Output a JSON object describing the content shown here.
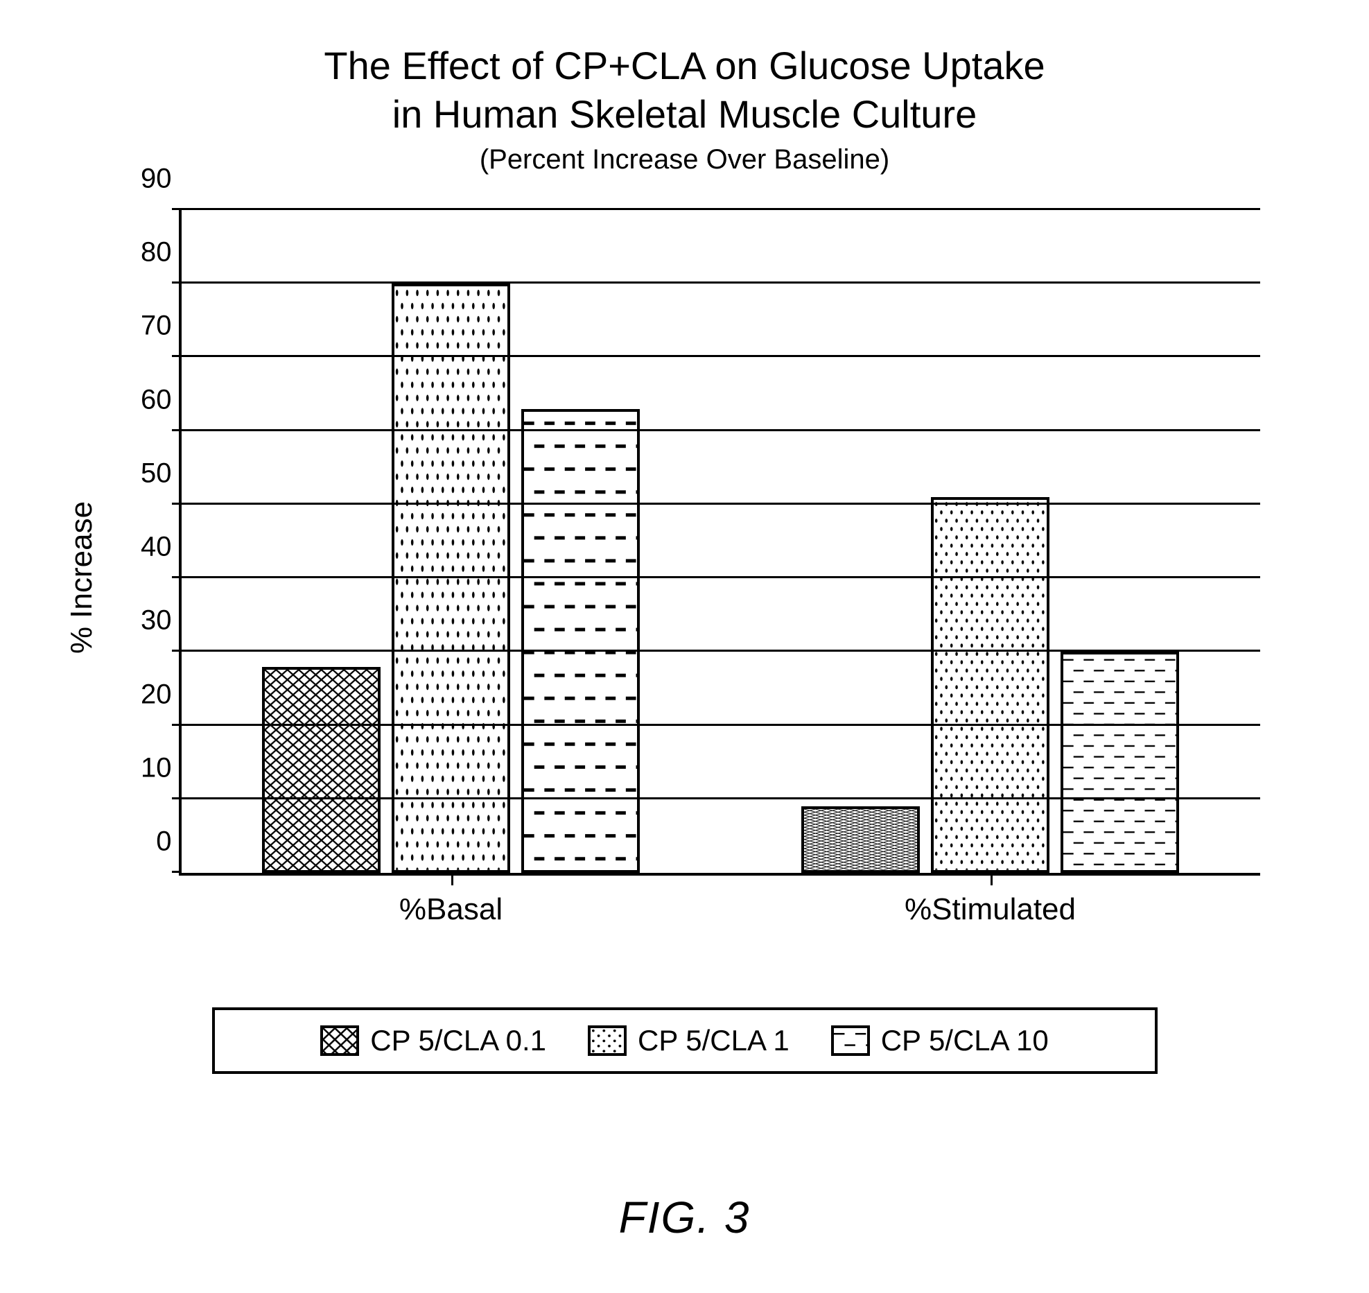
{
  "title_line1": "The Effect of CP+CLA on Glucose Uptake",
  "title_line2": "in Human Skeletal Muscle Culture",
  "subtitle": "(Percent Increase Over Baseline)",
  "ylabel": "% Increase",
  "figure_label": "FIG. 3",
  "chart": {
    "type": "bar-grouped",
    "ylim": [
      0,
      90
    ],
    "ytick_step": 10,
    "yticks": [
      0,
      10,
      20,
      30,
      40,
      50,
      60,
      70,
      80,
      90
    ],
    "background_color": "#ffffff",
    "grid_color": "#000000",
    "axis_color": "#000000",
    "title_fontsize": 56,
    "subtitle_fontsize": 40,
    "label_fontsize": 44,
    "tick_fontsize": 40,
    "bar_border_color": "#000000",
    "bar_border_width": 4,
    "group_gap_pct": 14,
    "bar_gap_pct": 1,
    "bar_width_pct": 11,
    "categories": [
      "%Basal",
      "%Stimulated"
    ],
    "series": [
      {
        "name": "CP 5/CLA 0.1",
        "pattern": "crosshatch",
        "color": "#000000"
      },
      {
        "name": "CP 5/CLA 1",
        "pattern": "dots",
        "color": "#000000"
      },
      {
        "name": "CP 5/CLA 10",
        "pattern": "dashes",
        "color": "#000000"
      }
    ],
    "values": [
      [
        28,
        80,
        63
      ],
      [
        9,
        51,
        30
      ]
    ]
  },
  "patterns": {
    "crosshatch": {
      "bg": "#ffffff",
      "stroke": "#000000",
      "strokeWidth": 3,
      "size": 20
    },
    "dots": {
      "bg": "#ffffff",
      "fill": "#000000",
      "radius": 2.2,
      "size": 18
    },
    "dashes": {
      "bg": "#ffffff",
      "stroke": "#000000",
      "strokeWidth": 3,
      "dash": 18,
      "gapX": 36,
      "gapY": 20
    }
  }
}
